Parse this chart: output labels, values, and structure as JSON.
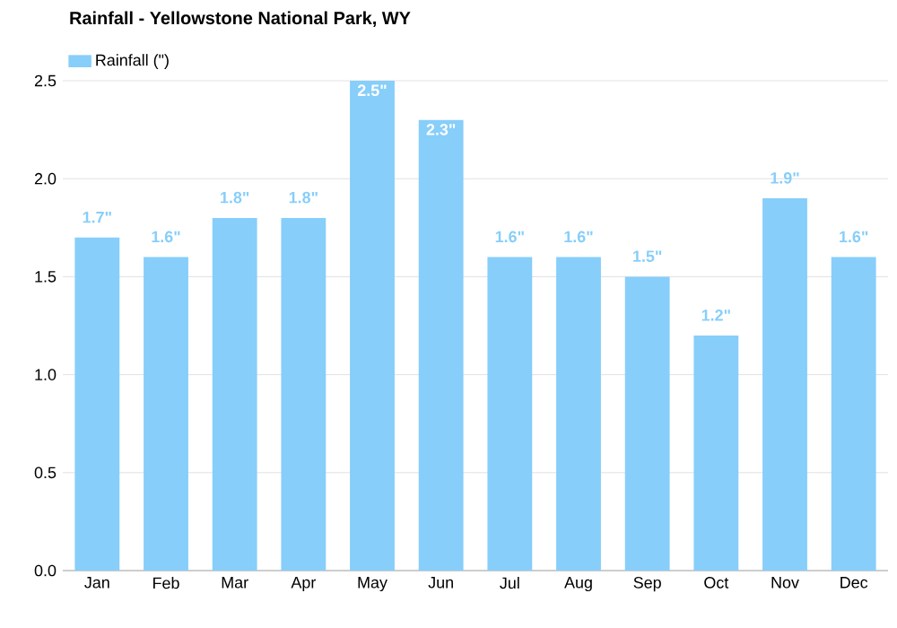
{
  "chart_data": {
    "type": "bar",
    "title": "Rainfall - Yellowstone National Park, WY",
    "categories": [
      "Jan",
      "Feb",
      "Mar",
      "Apr",
      "May",
      "Jun",
      "Jul",
      "Aug",
      "Sep",
      "Oct",
      "Nov",
      "Dec"
    ],
    "series": [
      {
        "name": "Rainfall (\")",
        "color": "#87cefa",
        "values": [
          1.7,
          1.6,
          1.8,
          1.8,
          2.5,
          2.3,
          1.6,
          1.6,
          1.5,
          1.2,
          1.9,
          1.6
        ],
        "value_labels": [
          "1.7\"",
          "1.6\"",
          "1.8\"",
          "1.8\"",
          "2.5\"",
          "2.3\"",
          "1.6\"",
          "1.6\"",
          "1.5\"",
          "1.2\"",
          "1.9\"",
          "1.6\""
        ]
      }
    ],
    "ylim": [
      0,
      2.5
    ],
    "yticks": [
      {
        "value": 0,
        "label": "0.0"
      },
      {
        "value": 0.5,
        "label": "0.5"
      },
      {
        "value": 1,
        "label": "1.0"
      },
      {
        "value": 1.5,
        "label": "1.5"
      },
      {
        "value": 2,
        "label": "2.0"
      },
      {
        "value": 2.5,
        "label": "2.5"
      }
    ],
    "grid": "y",
    "legend": "top left"
  }
}
